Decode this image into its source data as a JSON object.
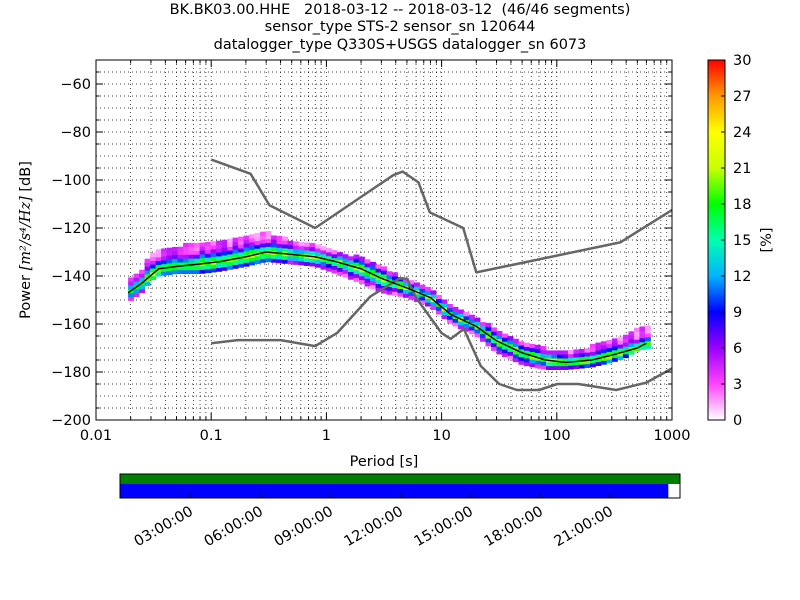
{
  "chart_data": [
    {
      "type": "heatmap",
      "subtype": "probabilistic-power-spectral-density",
      "title": [
        "BK.BK03.00.HHE   2018-03-12 -- 2018-03-12  (46/46 segments)",
        "sensor_type STS-2 sensor_sn 120644",
        "datalogger_type Q330S+USGS datalogger_sn 6073"
      ],
      "xlabel": "Period [s]",
      "ylabel_prefix": "Power ",
      "ylabel_units": "[m²/s⁴/Hz]",
      "ylabel_suffix": " [dB]",
      "xscale": "log",
      "xlim": [
        0.01,
        1000
      ],
      "ylim": [
        -200,
        -50
      ],
      "xticks": [
        0.01,
        0.1,
        1,
        10,
        100,
        1000
      ],
      "xtick_labels": [
        "0.01",
        "0.1",
        "1",
        "10",
        "100",
        "1000"
      ],
      "yticks": [
        -200,
        -180,
        -160,
        -140,
        -120,
        -100,
        -80,
        -60
      ],
      "ytick_labels": [
        "−200",
        "−180",
        "−160",
        "−140",
        "−120",
        "−100",
        "−80",
        "−60"
      ],
      "grid": "dotted",
      "colorbar": {
        "label": "[%]",
        "range": [
          0,
          30
        ],
        "ticks": [
          0,
          3,
          6,
          9,
          12,
          15,
          18,
          21,
          24,
          27,
          30
        ],
        "tick_labels": [
          "0",
          "3",
          "6",
          "9",
          "12",
          "15",
          "18",
          "21",
          "24",
          "27",
          "30"
        ],
        "colors": [
          "#ffffff",
          "#ff44ff",
          "#9a00ff",
          "#0000ff",
          "#00b4ff",
          "#00ffb0",
          "#00ff00",
          "#c8ff00",
          "#ffff00",
          "#ff9a00",
          "#ff0000"
        ]
      },
      "noise_model_color": "#666666",
      "mode_line_color": "#000000",
      "new_high_noise_model": {
        "period": [
          0.1,
          0.22,
          0.32,
          0.8,
          3.8,
          4.6,
          6.3,
          7.9,
          15.4,
          20,
          354.8,
          1000
        ],
        "power": [
          -91.5,
          -97.4,
          -110.5,
          -120,
          -98,
          -96.5,
          -101,
          -113.5,
          -120,
          -138.5,
          -126,
          -112.5
        ]
      },
      "new_low_noise_model": {
        "period": [
          0.1,
          0.17,
          0.4,
          0.8,
          1.24,
          2.4,
          4.3,
          5,
          6,
          10,
          12,
          15.6,
          21.9,
          31.6,
          45,
          70,
          101,
          154,
          328,
          600,
          1000
        ],
        "power": [
          -168,
          -166.7,
          -166.7,
          -169.2,
          -163.7,
          -148.6,
          -141.1,
          -141.1,
          -149,
          -163.8,
          -166.2,
          -162.1,
          -177.5,
          -185,
          -187.5,
          -187.5,
          -185,
          -185,
          -187.5,
          -184.4,
          -178.5
        ]
      },
      "mode_curve": {
        "period": [
          0.019,
          0.025,
          0.035,
          0.05,
          0.08,
          0.12,
          0.2,
          0.3,
          0.5,
          0.8,
          1.2,
          2,
          3,
          5,
          8,
          12,
          20,
          30,
          50,
          80,
          120,
          200,
          300,
          500,
          600
        ],
        "power": [
          -147,
          -143,
          -137,
          -136,
          -135,
          -134,
          -132,
          -130,
          -131,
          -132,
          -134,
          -137,
          -141,
          -145,
          -149,
          -156,
          -161,
          -167,
          -172,
          -175,
          -176,
          -175,
          -173,
          -170,
          -168
        ]
      },
      "psd_band": {
        "period": [
          0.019,
          0.025,
          0.03,
          0.035,
          0.05,
          0.08,
          0.12,
          0.2,
          0.3,
          0.5,
          0.8,
          1.2,
          2,
          3,
          5,
          8,
          12,
          20,
          30,
          50,
          80,
          120,
          200,
          300,
          400,
          500,
          650
        ],
        "upper": [
          -143,
          -138,
          -131,
          -129,
          -128,
          -127,
          -126,
          -124,
          -122,
          -126,
          -128,
          -131,
          -133,
          -137,
          -142,
          -146,
          -153,
          -158,
          -163,
          -168,
          -171,
          -172,
          -170,
          -167,
          -166,
          -162,
          -162
        ],
        "lower": [
          -151,
          -147,
          -142,
          -140,
          -139,
          -139,
          -138,
          -136,
          -134,
          -135,
          -136,
          -139,
          -143,
          -147,
          -149,
          -153,
          -160,
          -165,
          -172,
          -177,
          -179,
          -179,
          -178,
          -176,
          -174,
          -171,
          -170
        ]
      }
    },
    {
      "type": "timeline",
      "tick_labels": [
        "03:00:00",
        "06:00:00",
        "09:00:00",
        "12:00:00",
        "15:00:00",
        "18:00:00",
        "21:00:00"
      ],
      "tick_hours": [
        3,
        6,
        9,
        12,
        15,
        18,
        21
      ],
      "range_hours": [
        0,
        24
      ],
      "bars": [
        {
          "color": "#008000",
          "start_hours": 0,
          "end_hours": 24
        },
        {
          "color": "#0000ff",
          "start_hours": 0,
          "end_hours": 23.5
        }
      ]
    }
  ]
}
